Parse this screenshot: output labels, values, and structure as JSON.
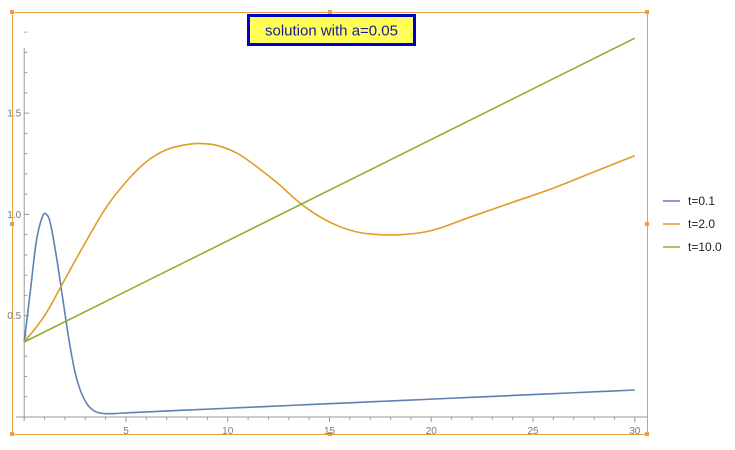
{
  "chart_data": {
    "type": "line",
    "title": "solution with a=0.05",
    "xlabel": "",
    "ylabel": "",
    "xlim": [
      -0.6,
      30.6
    ],
    "ylim": [
      -0.02,
      1.95
    ],
    "xticks": [
      5,
      10,
      15,
      20,
      25,
      30
    ],
    "yticks": [
      0.5,
      1.0,
      1.5
    ],
    "ytick_labels": [
      "0.5",
      "1.0",
      "1.5"
    ],
    "legend_position": "right",
    "grid": false,
    "series": [
      {
        "name": "t=0.1",
        "color": "#5e81b5",
        "x": [
          0,
          0.3,
          0.6,
          0.9,
          1.1,
          1.3,
          1.6,
          1.9,
          2.2,
          2.5,
          2.8,
          3.1,
          3.4,
          3.7,
          4.0,
          4.5,
          5,
          6,
          8,
          10,
          12,
          14,
          16,
          18,
          20,
          22,
          24,
          26,
          28,
          30
        ],
        "y": [
          0.37,
          0.62,
          0.87,
          0.99,
          1.0,
          0.95,
          0.78,
          0.58,
          0.38,
          0.22,
          0.12,
          0.062,
          0.032,
          0.02,
          0.016,
          0.017,
          0.02,
          0.025,
          0.034,
          0.043,
          0.052,
          0.061,
          0.07,
          0.079,
          0.088,
          0.097,
          0.106,
          0.115,
          0.124,
          0.133
        ]
      },
      {
        "name": "t=2.0",
        "color": "#e19c24",
        "x": [
          0,
          1,
          2,
          3,
          4,
          5,
          6,
          7,
          8,
          8.7,
          9.5,
          10.5,
          11.5,
          12.5,
          13.5,
          14.5,
          15.5,
          16.5,
          17.5,
          18.5,
          19.5,
          20.5,
          22,
          24,
          26,
          28,
          30
        ],
        "y": [
          0.37,
          0.5,
          0.68,
          0.86,
          1.03,
          1.16,
          1.26,
          1.32,
          1.345,
          1.35,
          1.34,
          1.3,
          1.23,
          1.15,
          1.06,
          0.99,
          0.94,
          0.91,
          0.9,
          0.9,
          0.91,
          0.935,
          0.99,
          1.06,
          1.13,
          1.21,
          1.29
        ]
      },
      {
        "name": "t=10.0",
        "color": "#8fb032",
        "x": [
          0,
          30
        ],
        "y": [
          0.37,
          1.87
        ]
      }
    ]
  }
}
